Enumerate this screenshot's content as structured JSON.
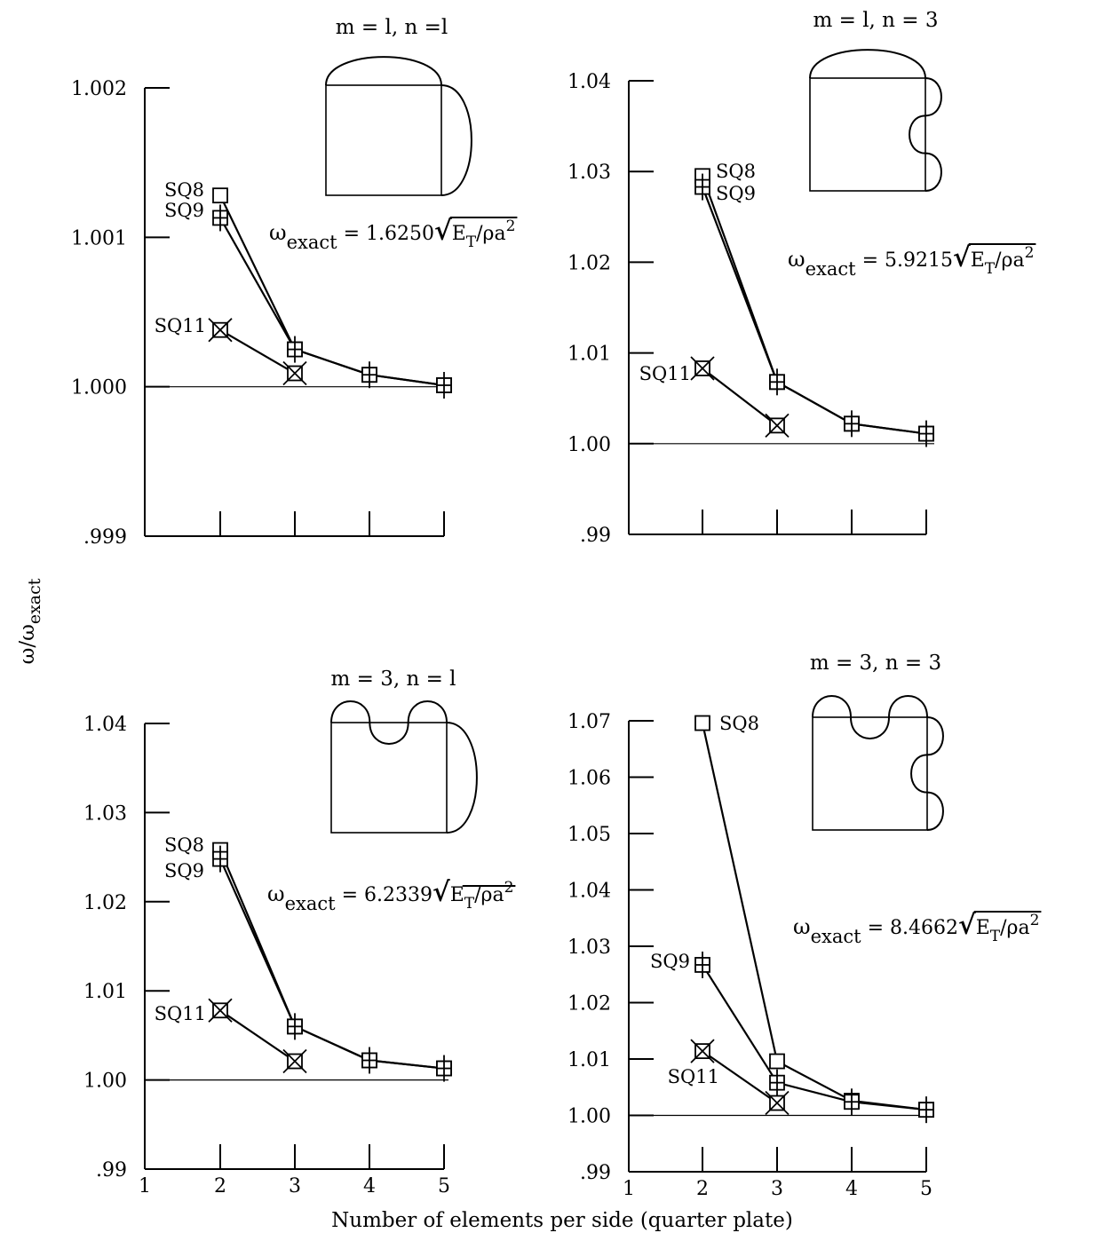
{
  "figure": {
    "ylabel_main": "ω/ω",
    "ylabel_sub": "exact",
    "xlabel": "Number of elements per side (quarter plate)"
  },
  "chart_data": [
    {
      "type": "line",
      "title": "m = l, n =l",
      "omega_exact": {
        "prefix": "ω",
        "sub": "exact",
        "value": "= 1.6250",
        "radicand": "E",
        "radicand_sub": "T",
        "tail": "/ρa",
        "sup": "2"
      },
      "y_ticks": [
        ".999",
        "1.000",
        "1.001",
        "1.002"
      ],
      "ylim": [
        0.999,
        1.002
      ],
      "x_ticks": [],
      "x": [
        2,
        3,
        4,
        5
      ],
      "series": [
        {
          "name": "SQ8",
          "marker": "square",
          "x": [
            2,
            3,
            4,
            5
          ],
          "values": [
            1.00128,
            1.00025,
            1.00008,
            1.00001
          ]
        },
        {
          "name": "SQ9",
          "marker": "square-cross",
          "x": [
            2,
            3,
            4,
            5
          ],
          "values": [
            1.00113,
            1.00025,
            1.00008,
            1.00001
          ]
        },
        {
          "name": "SQ11",
          "marker": "square-x",
          "x": [
            2,
            3
          ],
          "values": [
            1.00038,
            1.00009
          ]
        }
      ],
      "mode_shape": {
        "m": 1,
        "n": 1
      }
    },
    {
      "type": "line",
      "title": "m = l, n = 3",
      "omega_exact": {
        "prefix": "ω",
        "sub": "exact",
        "value": "= 5.9215",
        "radicand": "E",
        "radicand_sub": "T",
        "tail": "/ρa",
        "sup": "2"
      },
      "y_ticks": [
        ".99",
        "1.00",
        "1.01",
        "1.02",
        "1.03",
        "1.04"
      ],
      "ylim": [
        0.99,
        1.04
      ],
      "x_ticks": [],
      "x": [
        2,
        3,
        4,
        5
      ],
      "series": [
        {
          "name": "SQ8",
          "marker": "square",
          "x": [
            2,
            3,
            4,
            5
          ],
          "values": [
            1.0295,
            1.0068,
            1.0022,
            1.0011
          ]
        },
        {
          "name": "SQ9",
          "marker": "square-cross",
          "x": [
            2,
            3,
            4,
            5
          ],
          "values": [
            1.0283,
            1.0068,
            1.0022,
            1.0011
          ]
        },
        {
          "name": "SQ11",
          "marker": "square-x",
          "x": [
            2,
            3
          ],
          "values": [
            1.0083,
            1.002
          ]
        }
      ],
      "mode_shape": {
        "m": 1,
        "n": 3
      }
    },
    {
      "type": "line",
      "title": "m =  3, n = l",
      "omega_exact": {
        "prefix": "ω",
        "sub": "exact",
        "value": "=  6.2339",
        "radicand": "E",
        "radicand_sub": "T",
        "tail": "/ρa",
        "sup": "2"
      },
      "y_ticks": [
        ".99",
        "1.00",
        "1.01",
        "1.02",
        "1.03",
        "1.04"
      ],
      "ylim": [
        0.99,
        1.04
      ],
      "x_ticks": [
        "1",
        "2",
        "3",
        "4",
        "5"
      ],
      "x": [
        2,
        3,
        4,
        5
      ],
      "series": [
        {
          "name": "SQ8",
          "marker": "square",
          "x": [
            2,
            3,
            4,
            5
          ],
          "values": [
            1.0258,
            1.006,
            1.0022,
            1.0013
          ]
        },
        {
          "name": "SQ9",
          "marker": "square-cross",
          "x": [
            2,
            3,
            4,
            5
          ],
          "values": [
            1.0248,
            1.006,
            1.0022,
            1.0013
          ]
        },
        {
          "name": "SQ11",
          "marker": "square-x",
          "x": [
            2,
            3
          ],
          "values": [
            1.0078,
            1.0021
          ]
        }
      ],
      "mode_shape": {
        "m": 3,
        "n": 1
      }
    },
    {
      "type": "line",
      "title": "m = 3, n = 3",
      "omega_exact": {
        "prefix": "ω",
        "sub": "exact",
        "value": "= 8.4662",
        "radicand": "E",
        "radicand_sub": "T",
        "tail": "/ρa",
        "sup": "2"
      },
      "y_ticks": [
        ".99",
        "1.00",
        "1.01",
        "1.02",
        "1.03",
        "1.04",
        "1.05",
        "1.06",
        "1.07"
      ],
      "ylim": [
        0.99,
        1.07
      ],
      "x_ticks": [
        "1",
        "2",
        "3",
        "4",
        "5"
      ],
      "x": [
        2,
        3,
        4,
        5
      ],
      "series": [
        {
          "name": "SQ8",
          "marker": "square",
          "x": [
            2,
            3,
            4,
            5
          ],
          "values": [
            1.0696,
            1.0096,
            1.0026,
            1.001
          ]
        },
        {
          "name": "SQ9",
          "marker": "square-cross",
          "x": [
            2,
            3,
            4,
            5
          ],
          "values": [
            1.0267,
            1.0058,
            1.0024,
            1.001
          ]
        },
        {
          "name": "SQ11",
          "marker": "square-x",
          "x": [
            2,
            3
          ],
          "values": [
            1.0114,
            1.0022
          ]
        }
      ],
      "mode_shape": {
        "m": 3,
        "n": 3
      }
    }
  ]
}
